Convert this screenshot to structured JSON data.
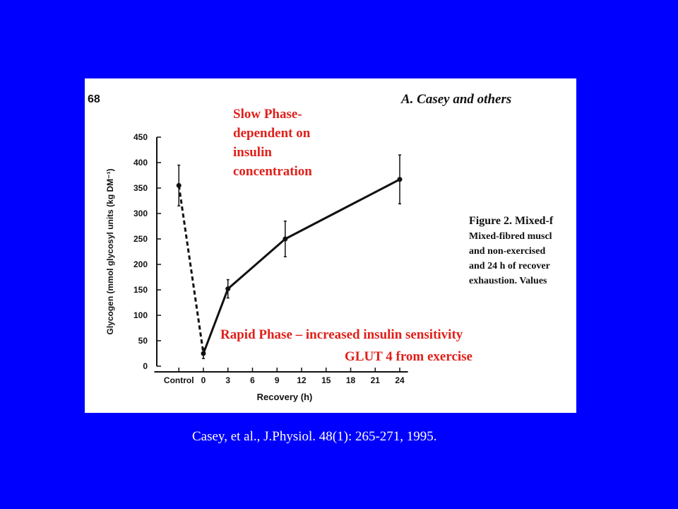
{
  "header": {
    "page_number": "68",
    "running_title": "A. Casey and others"
  },
  "caption_fragment": [
    "Figure 2. Mixed-f",
    "Mixed-fibred muscl",
    "and non-exercised",
    "and 24 h of recover",
    "exhaustion. Values"
  ],
  "chart_data": {
    "type": "line",
    "x_label": "Recovery (h)",
    "y_label": "Glycogen (mmol glycosyl units (kg DM⁻¹)",
    "x": [
      -3,
      0,
      3,
      10,
      24
    ],
    "values": [
      355,
      25,
      152,
      250,
      367
    ],
    "errors": [
      40,
      10,
      18,
      35,
      48
    ],
    "segment_styles": [
      "dashed",
      "solid",
      "solid",
      "solid"
    ],
    "color": "#111111",
    "xlim": [
      -6,
      25
    ],
    "xticks": [
      {
        "value": -3,
        "label": "Control"
      },
      0,
      3,
      6,
      9,
      12,
      15,
      18,
      21,
      24
    ],
    "ylim": [
      0,
      450
    ],
    "yticks": [
      0,
      50,
      100,
      150,
      200,
      250,
      300,
      350,
      400,
      450
    ]
  },
  "annotations": {
    "slow_phase": [
      "Slow Phase-",
      "dependent on",
      "insulin",
      "concentration"
    ],
    "rapid_phase": [
      "Rapid Phase – increased insulin sensitivity",
      "GLUT 4 from exercise"
    ]
  },
  "citation": "Casey, et al., J.Physiol. 48(1): 265-271, 1995."
}
